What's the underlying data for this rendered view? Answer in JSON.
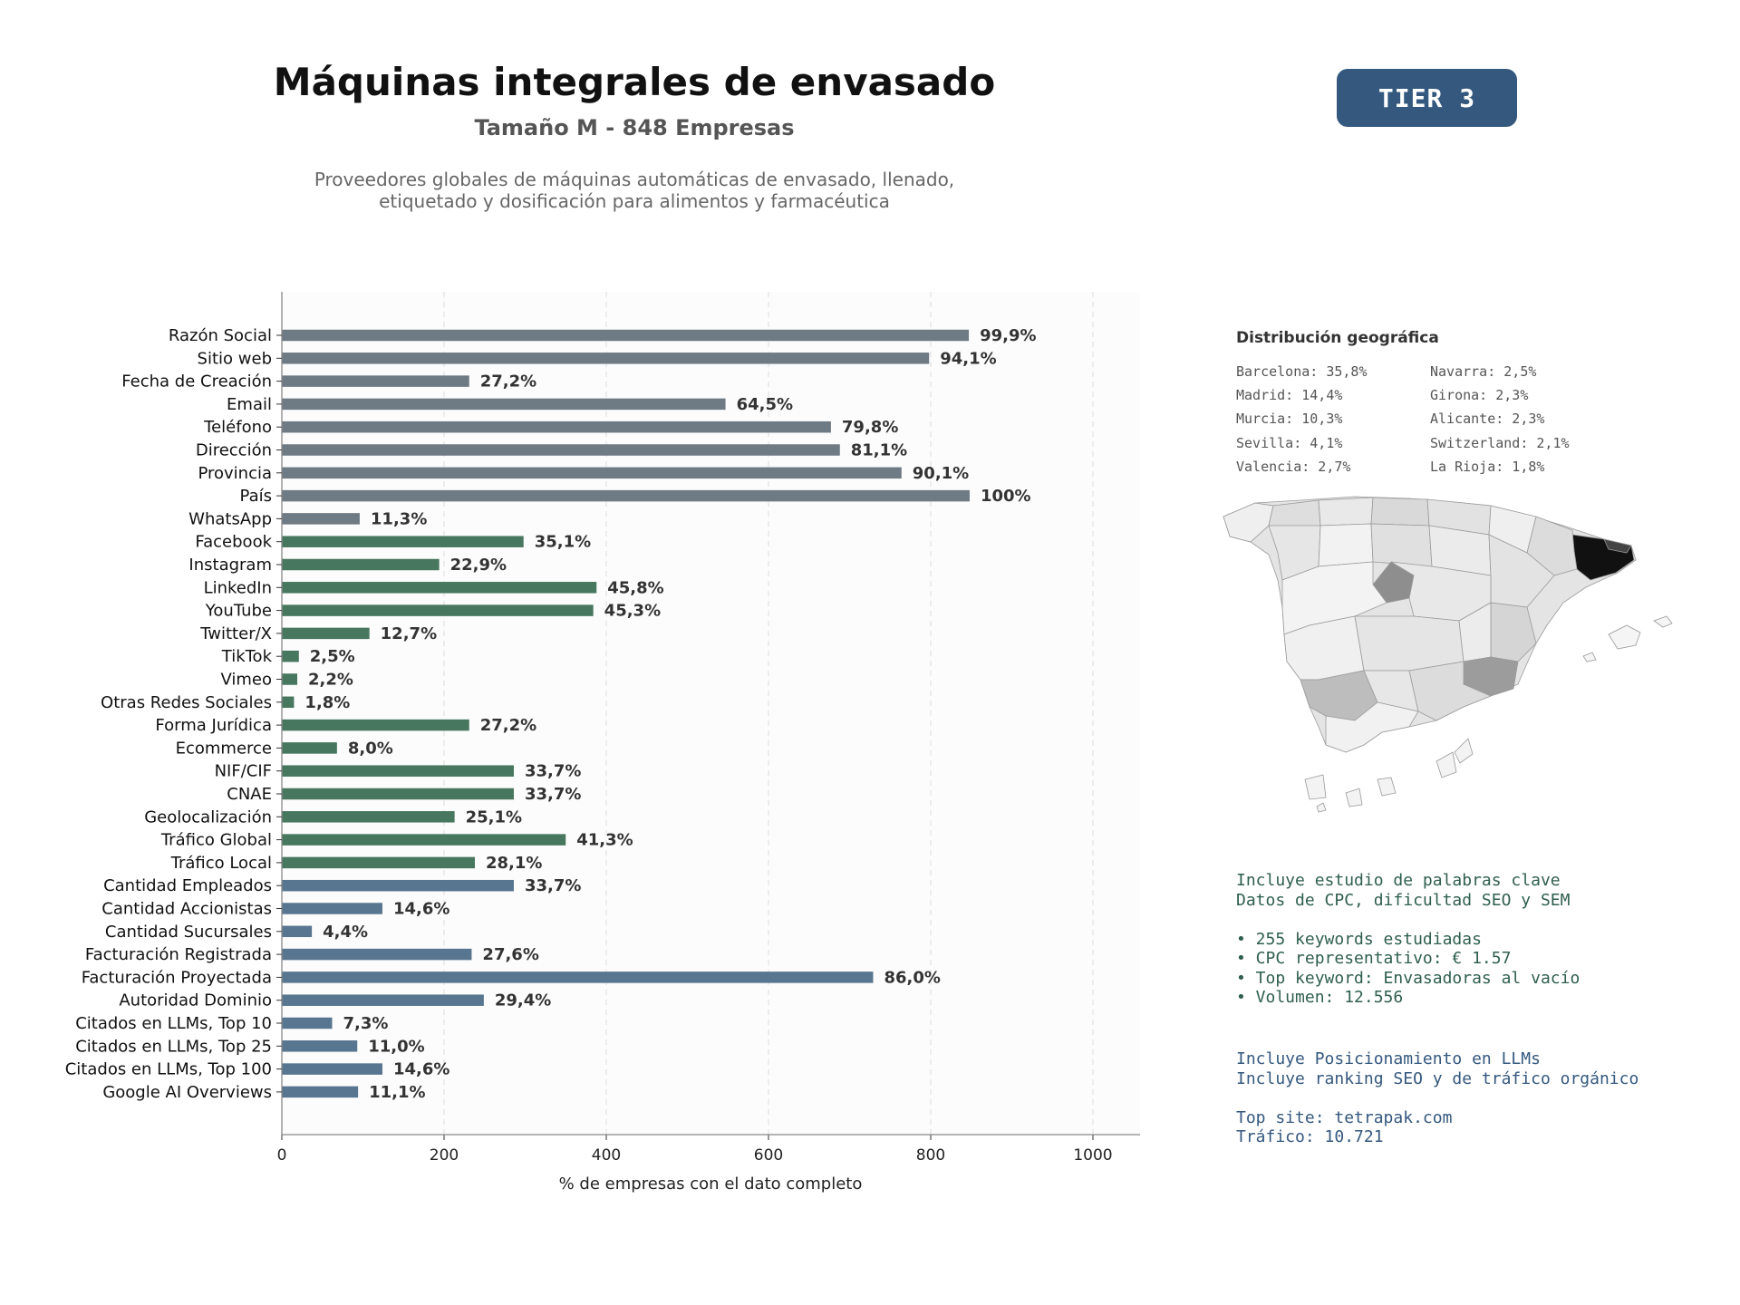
{
  "header": {
    "title": "Máquinas integrales de envasado",
    "subtitle": "Tamaño M - 848 Empresas",
    "description_line1": "Proveedores globales de máquinas automáticas de envasado, llenado,",
    "description_line2": "etiquetado y dosificación para alimentos y farmacéutica",
    "tier_badge": "TIER 3"
  },
  "colors": {
    "gray": "#6e7a84",
    "green": "#48775f",
    "blue": "#587690",
    "badge": "#34587e"
  },
  "chart_data": {
    "type": "bar",
    "orientation": "horizontal",
    "xlabel": "% de empresas con el dato completo",
    "xlim": [
      0,
      1060
    ],
    "xticks": [
      0,
      200,
      400,
      600,
      800,
      1000
    ],
    "grid": true,
    "categories": [
      "Razón Social",
      "Sitio web",
      "Fecha de Creación",
      "Email",
      "Teléfono",
      "Dirección",
      "Provincia",
      "País",
      "WhatsApp",
      "Facebook",
      "Instagram",
      "LinkedIn",
      "YouTube",
      "Twitter/X",
      "TikTok",
      "Vimeo",
      "Otras Redes Sociales",
      "Forma Jurídica",
      "Ecommerce",
      "NIF/CIF",
      "CNAE",
      "Geolocalización",
      "Tráfico Global",
      "Tráfico Local",
      "Cantidad Empleados",
      "Cantidad Accionistas",
      "Cantidad Sucursales",
      "Facturación Registrada",
      "Facturación Proyectada",
      "Autoridad Dominio",
      "Citados en LLMs, Top 10",
      "Citados en LLMs, Top 25",
      "Citados en LLMs, Top 100",
      "Google AI Overviews"
    ],
    "values": [
      847,
      798,
      231,
      547,
      677,
      688,
      764,
      848,
      96,
      298,
      194,
      388,
      384,
      108,
      21,
      19,
      15,
      231,
      68,
      286,
      286,
      213,
      350,
      238,
      286,
      124,
      37,
      234,
      729,
      249,
      62,
      93,
      124,
      94
    ],
    "labels": [
      "99,9%",
      "94,1%",
      "27,2%",
      "64,5%",
      "79,8%",
      "81,1%",
      "90,1%",
      "100%",
      "11,3%",
      "35,1%",
      "22,9%",
      "45,8%",
      "45,3%",
      "12,7%",
      "2,5%",
      "2,2%",
      "1,8%",
      "27,2%",
      "8,0%",
      "33,7%",
      "33,7%",
      "25,1%",
      "41,3%",
      "28,1%",
      "33,7%",
      "14,6%",
      "4,4%",
      "27,6%",
      "86,0%",
      "29,4%",
      "7,3%",
      "11,0%",
      "14,6%",
      "11,1%"
    ],
    "bar_groups": [
      "gray",
      "gray",
      "gray",
      "gray",
      "gray",
      "gray",
      "gray",
      "gray",
      "gray",
      "green",
      "green",
      "green",
      "green",
      "green",
      "green",
      "green",
      "green",
      "green",
      "green",
      "green",
      "green",
      "green",
      "green",
      "green",
      "blue",
      "blue",
      "blue",
      "blue",
      "blue",
      "blue",
      "blue",
      "blue",
      "blue",
      "blue"
    ]
  },
  "geo": {
    "title": "Distribución geográfica",
    "col1": [
      "Barcelona: 35,8%",
      "Madrid: 14,4%",
      "Murcia: 10,3%",
      "Sevilla: 4,1%",
      "Valencia: 2,7%"
    ],
    "col2": [
      "Navarra: 2,5%",
      "Girona: 2,3%",
      "Alicante: 2,3%",
      "Switzerland: 2,1%",
      "La Rioja: 1,8%"
    ]
  },
  "keywords": {
    "line1": "Incluye estudio de palabras clave",
    "line2": "Datos de CPC, dificultad SEO y SEM",
    "bullet1": "• 255 keywords estudiadas",
    "bullet2": "• CPC representativo: € 1.57",
    "bullet3": "• Top keyword: Envasadoras al vacío",
    "bullet4": "• Volumen: 12.556"
  },
  "llm": {
    "line1": "Incluye Posicionamiento en LLMs",
    "line2": "Incluye ranking SEO y de tráfico orgánico",
    "top_site": "Top site: tetrapak.com",
    "traffic": "Tráfico: 10.721"
  }
}
